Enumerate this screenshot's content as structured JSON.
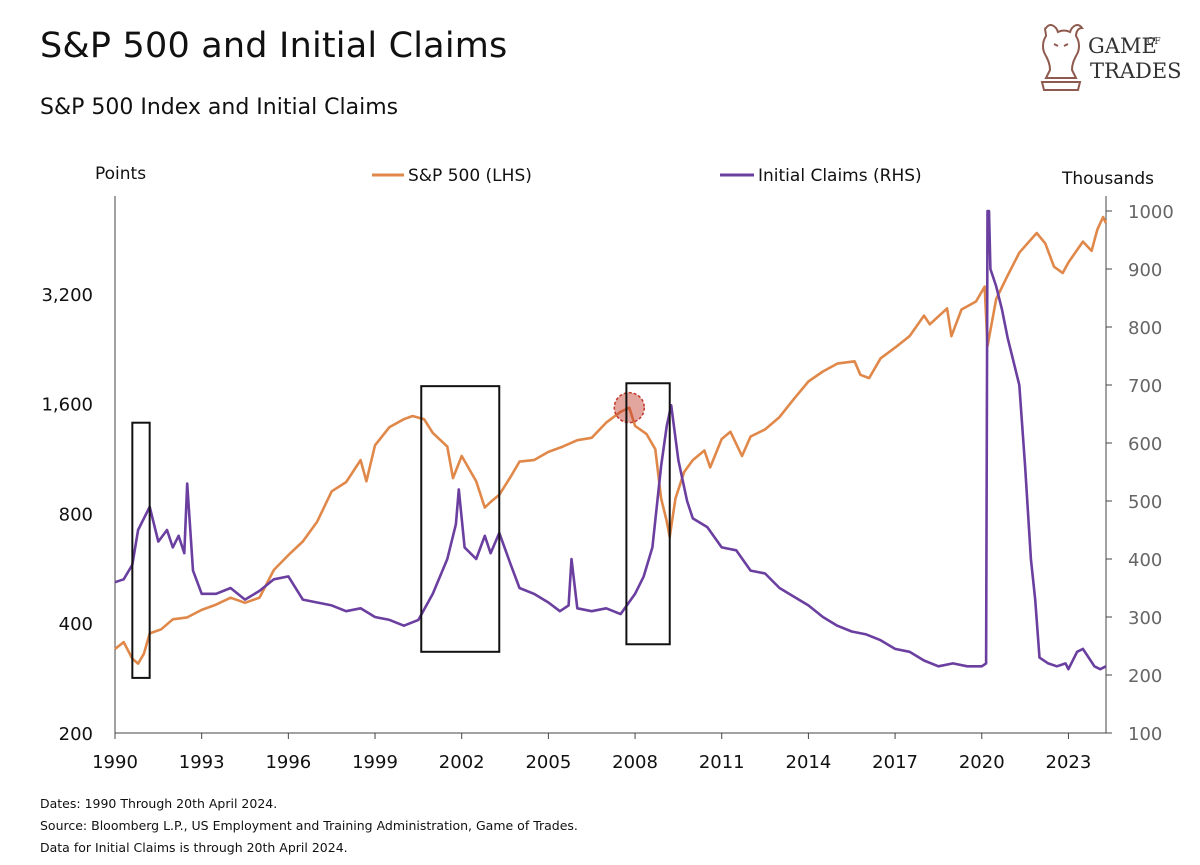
{
  "header": {
    "title": "S&P 500 and Initial Claims",
    "subtitle": "S&P 500 Index and Initial Claims"
  },
  "logo": {
    "line1": "GAME",
    "of": "OF",
    "line2": "TRADES",
    "icon": "bull-knight-icon"
  },
  "footer": {
    "line1": "Dates: 1990 Through 20th April 2024.",
    "line2": "Source: Bloomberg L.P., US Employment and Training Administration, Game of Trades.",
    "line3": "Data for Initial Claims is through 20th April 2024."
  },
  "colors": {
    "sp500": "#E0884A",
    "claims": "#6B3FA0",
    "highlight": "#C0392B"
  },
  "chart_data": {
    "type": "line",
    "left_axis": {
      "unit": "Points",
      "scale": "log",
      "range": [
        200,
        5400
      ],
      "ticks": [
        200,
        400,
        800,
        1600,
        3200
      ],
      "tick_labels": [
        "200",
        "400",
        "800",
        "1,600",
        "3,200"
      ]
    },
    "right_axis": {
      "unit": "Thousands",
      "scale": "linear",
      "range": [
        100,
        1000
      ],
      "ticks": [
        100,
        200,
        300,
        400,
        500,
        600,
        700,
        800,
        900,
        1000
      ],
      "tick_labels": [
        "100",
        "200",
        "300",
        "400",
        "500",
        "600",
        "700",
        "800",
        "900",
        "1000"
      ]
    },
    "x_axis": {
      "range": [
        1990.0,
        2024.3
      ],
      "ticks": [
        1990,
        1993,
        1996,
        1999,
        2002,
        2005,
        2008,
        2011,
        2014,
        2017,
        2020,
        2023
      ],
      "tick_labels": [
        "1990",
        "1993",
        "1996",
        "1999",
        "2002",
        "2005",
        "2008",
        "2011",
        "2014",
        "2017",
        "2020",
        "2023"
      ]
    },
    "series": [
      {
        "name": "S&P 500 (LHS)",
        "axis": "left",
        "points": [
          [
            1990.0,
            340
          ],
          [
            1990.3,
            355
          ],
          [
            1990.6,
            320
          ],
          [
            1990.8,
            310
          ],
          [
            1991.0,
            330
          ],
          [
            1991.2,
            375
          ],
          [
            1991.6,
            385
          ],
          [
            1992.0,
            410
          ],
          [
            1992.5,
            415
          ],
          [
            1993.0,
            435
          ],
          [
            1993.5,
            450
          ],
          [
            1994.0,
            470
          ],
          [
            1994.5,
            455
          ],
          [
            1995.0,
            470
          ],
          [
            1995.5,
            560
          ],
          [
            1996.0,
            615
          ],
          [
            1996.5,
            670
          ],
          [
            1997.0,
            760
          ],
          [
            1997.5,
            920
          ],
          [
            1998.0,
            975
          ],
          [
            1998.5,
            1120
          ],
          [
            1998.7,
            980
          ],
          [
            1999.0,
            1230
          ],
          [
            1999.5,
            1380
          ],
          [
            2000.0,
            1450
          ],
          [
            2000.3,
            1480
          ],
          [
            2000.7,
            1450
          ],
          [
            2001.0,
            1330
          ],
          [
            2001.5,
            1220
          ],
          [
            2001.7,
            1000
          ],
          [
            2002.0,
            1150
          ],
          [
            2002.5,
            980
          ],
          [
            2002.8,
            830
          ],
          [
            2003.0,
            860
          ],
          [
            2003.3,
            900
          ],
          [
            2003.7,
            1010
          ],
          [
            2004.0,
            1110
          ],
          [
            2004.5,
            1120
          ],
          [
            2005.0,
            1180
          ],
          [
            2005.5,
            1220
          ],
          [
            2006.0,
            1270
          ],
          [
            2006.5,
            1290
          ],
          [
            2007.0,
            1420
          ],
          [
            2007.5,
            1520
          ],
          [
            2007.8,
            1560
          ],
          [
            2008.0,
            1390
          ],
          [
            2008.4,
            1320
          ],
          [
            2008.7,
            1200
          ],
          [
            2008.9,
            880
          ],
          [
            2009.1,
            760
          ],
          [
            2009.2,
            690
          ],
          [
            2009.4,
            880
          ],
          [
            2009.7,
            1040
          ],
          [
            2010.0,
            1120
          ],
          [
            2010.4,
            1190
          ],
          [
            2010.6,
            1070
          ],
          [
            2011.0,
            1280
          ],
          [
            2011.3,
            1340
          ],
          [
            2011.7,
            1150
          ],
          [
            2012.0,
            1300
          ],
          [
            2012.5,
            1360
          ],
          [
            2013.0,
            1470
          ],
          [
            2013.5,
            1650
          ],
          [
            2014.0,
            1840
          ],
          [
            2014.5,
            1960
          ],
          [
            2015.0,
            2060
          ],
          [
            2015.6,
            2090
          ],
          [
            2015.8,
            1920
          ],
          [
            2016.1,
            1880
          ],
          [
            2016.5,
            2130
          ],
          [
            2017.0,
            2280
          ],
          [
            2017.5,
            2450
          ],
          [
            2018.0,
            2790
          ],
          [
            2018.2,
            2640
          ],
          [
            2018.8,
            2920
          ],
          [
            2018.95,
            2450
          ],
          [
            2019.3,
            2900
          ],
          [
            2019.8,
            3050
          ],
          [
            2020.1,
            3350
          ],
          [
            2020.2,
            2300
          ],
          [
            2020.5,
            3100
          ],
          [
            2020.9,
            3600
          ],
          [
            2021.3,
            4150
          ],
          [
            2021.9,
            4700
          ],
          [
            2022.2,
            4400
          ],
          [
            2022.5,
            3800
          ],
          [
            2022.8,
            3650
          ],
          [
            2023.0,
            3900
          ],
          [
            2023.5,
            4450
          ],
          [
            2023.8,
            4200
          ],
          [
            2024.0,
            4800
          ],
          [
            2024.2,
            5200
          ],
          [
            2024.3,
            5000
          ]
        ]
      },
      {
        "name": "Initial Claims (RHS)",
        "axis": "right",
        "points": [
          [
            1990.0,
            360
          ],
          [
            1990.3,
            365
          ],
          [
            1990.6,
            390
          ],
          [
            1990.8,
            450
          ],
          [
            1991.0,
            470
          ],
          [
            1991.2,
            490
          ],
          [
            1991.5,
            430
          ],
          [
            1991.8,
            450
          ],
          [
            1992.0,
            420
          ],
          [
            1992.2,
            440
          ],
          [
            1992.4,
            410
          ],
          [
            1992.5,
            530
          ],
          [
            1992.7,
            380
          ],
          [
            1993.0,
            340
          ],
          [
            1993.5,
            340
          ],
          [
            1994.0,
            350
          ],
          [
            1994.5,
            330
          ],
          [
            1995.0,
            345
          ],
          [
            1995.5,
            365
          ],
          [
            1996.0,
            370
          ],
          [
            1996.5,
            330
          ],
          [
            1997.0,
            325
          ],
          [
            1997.5,
            320
          ],
          [
            1998.0,
            310
          ],
          [
            1998.5,
            315
          ],
          [
            1999.0,
            300
          ],
          [
            1999.5,
            295
          ],
          [
            2000.0,
            285
          ],
          [
            2000.5,
            295
          ],
          [
            2001.0,
            340
          ],
          [
            2001.5,
            400
          ],
          [
            2001.8,
            460
          ],
          [
            2001.9,
            520
          ],
          [
            2002.1,
            420
          ],
          [
            2002.5,
            400
          ],
          [
            2002.8,
            440
          ],
          [
            2003.0,
            410
          ],
          [
            2003.3,
            445
          ],
          [
            2003.7,
            390
          ],
          [
            2004.0,
            350
          ],
          [
            2004.5,
            340
          ],
          [
            2005.0,
            325
          ],
          [
            2005.4,
            310
          ],
          [
            2005.7,
            320
          ],
          [
            2005.8,
            400
          ],
          [
            2006.0,
            315
          ],
          [
            2006.5,
            310
          ],
          [
            2007.0,
            315
          ],
          [
            2007.5,
            305
          ],
          [
            2008.0,
            340
          ],
          [
            2008.3,
            370
          ],
          [
            2008.6,
            420
          ],
          [
            2008.9,
            560
          ],
          [
            2009.1,
            630
          ],
          [
            2009.25,
            665
          ],
          [
            2009.5,
            570
          ],
          [
            2009.8,
            500
          ],
          [
            2010.0,
            470
          ],
          [
            2010.5,
            455
          ],
          [
            2011.0,
            420
          ],
          [
            2011.5,
            415
          ],
          [
            2012.0,
            380
          ],
          [
            2012.5,
            375
          ],
          [
            2013.0,
            350
          ],
          [
            2013.5,
            335
          ],
          [
            2014.0,
            320
          ],
          [
            2014.5,
            300
          ],
          [
            2015.0,
            285
          ],
          [
            2015.5,
            275
          ],
          [
            2016.0,
            270
          ],
          [
            2016.5,
            260
          ],
          [
            2017.0,
            245
          ],
          [
            2017.5,
            240
          ],
          [
            2018.0,
            225
          ],
          [
            2018.5,
            215
          ],
          [
            2019.0,
            220
          ],
          [
            2019.5,
            215
          ],
          [
            2020.0,
            215
          ],
          [
            2020.15,
            220
          ],
          [
            2020.2,
            1000
          ],
          [
            2020.25,
            1000
          ],
          [
            2020.3,
            900
          ],
          [
            2020.5,
            870
          ],
          [
            2020.7,
            830
          ],
          [
            2020.9,
            780
          ],
          [
            2021.0,
            760
          ],
          [
            2021.3,
            700
          ],
          [
            2021.5,
            560
          ],
          [
            2021.7,
            400
          ],
          [
            2021.85,
            330
          ],
          [
            2022.0,
            230
          ],
          [
            2022.3,
            220
          ],
          [
            2022.6,
            215
          ],
          [
            2022.9,
            220
          ],
          [
            2023.0,
            210
          ],
          [
            2023.3,
            240
          ],
          [
            2023.5,
            245
          ],
          [
            2023.7,
            230
          ],
          [
            2023.9,
            215
          ],
          [
            2024.1,
            210
          ],
          [
            2024.3,
            215
          ]
        ]
      }
    ],
    "highlight_boxes": [
      {
        "x0": 1990.6,
        "x1": 1991.2,
        "y0_right": 195,
        "y1_right": 635
      },
      {
        "x0": 2000.6,
        "x1": 2003.3,
        "y0_right": 240,
        "y1_right": 698
      },
      {
        "x0": 2007.7,
        "x1": 2009.2,
        "y0_right": 253,
        "y1_right": 703
      }
    ],
    "highlight_marker": {
      "x": 2007.8,
      "y_left": 1560
    },
    "legend_position": "top-center",
    "grid": false
  }
}
